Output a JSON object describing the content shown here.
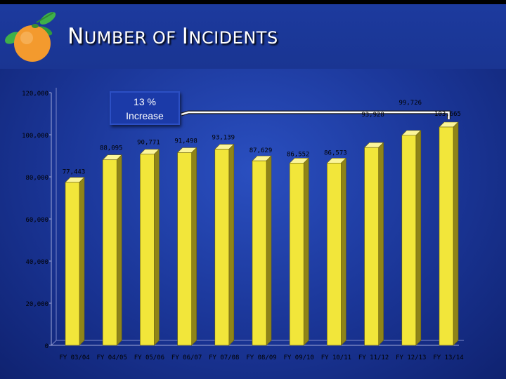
{
  "title": {
    "first_big": "N",
    "first_rest": "UMBER OF ",
    "second_big": "I",
    "second_rest": "NCIDENTS"
  },
  "callout": {
    "line1": "13 %",
    "line2": "Increase"
  },
  "chart_data": {
    "type": "bar",
    "title": "NUMBER OF INCIDENTS",
    "categories": [
      "FY 03/04",
      "FY 04/05",
      "FY 05/06",
      "FY 06/07",
      "FY 07/08",
      "FY 08/09",
      "FY 09/10",
      "FY 10/11",
      "FY 11/12",
      "FY 12/13",
      "FY 13/14"
    ],
    "values": [
      77443,
      88095,
      90771,
      91498,
      93139,
      87629,
      86552,
      86573,
      93928,
      99726,
      103665
    ],
    "value_labels": [
      "77,443",
      "88,095",
      "90,771",
      "91,498",
      "93,139",
      "87,629",
      "86,552",
      "86,573",
      "93,928",
      "99,726",
      "103,665"
    ],
    "ylim": [
      0,
      120000
    ],
    "yticks": [
      0,
      20000,
      40000,
      60000,
      80000,
      100000,
      120000
    ],
    "ytick_labels": [
      "0",
      "20,000",
      "40,000",
      "60,000",
      "80,000",
      "100,000",
      "120,000"
    ],
    "xlabel": "",
    "ylabel": "",
    "grid": false,
    "legend": "none",
    "colors": {
      "bar_face": "#f2e63a",
      "bar_side": "#8f8418",
      "bar_top": "#fbf59a",
      "text": "#000000"
    },
    "annotation": "13 % Increase"
  }
}
